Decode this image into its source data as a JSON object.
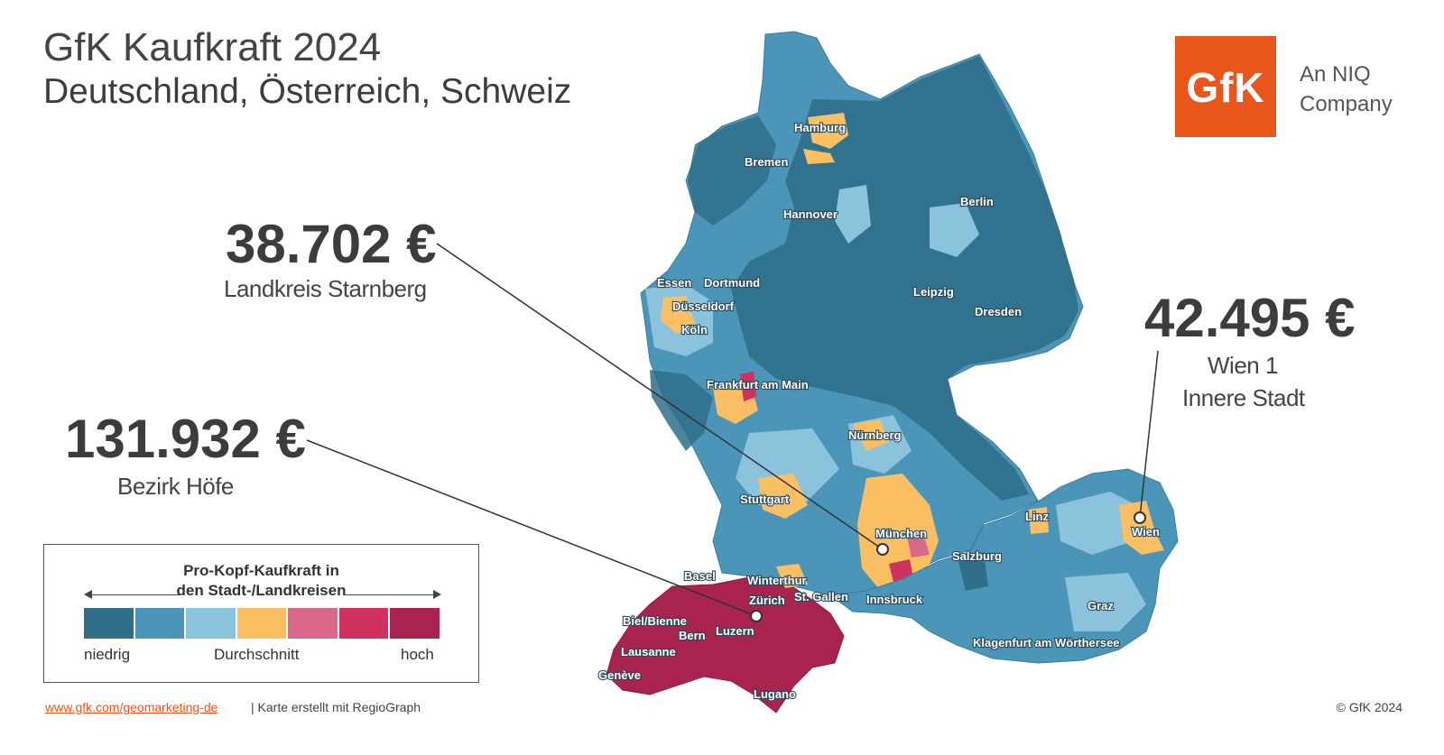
{
  "header": {
    "title": "GfK Kaufkraft 2024",
    "subtitle": "Deutschland, Österreich, Schweiz"
  },
  "logo": {
    "mark": "GfK",
    "tagline_1": "An NIQ",
    "tagline_2": "Company",
    "color": "#e8561b"
  },
  "callouts": {
    "starnberg": {
      "value": "38.702 €",
      "label": "Landkreis Starnberg"
    },
    "hoefe": {
      "value": "131.932 €",
      "label": "Bezirk Höfe"
    },
    "wien": {
      "value": "42.495 €",
      "label_1": "Wien 1",
      "label_2": "Innere Stadt"
    }
  },
  "map": {
    "cities": {
      "hamburg": "Hamburg",
      "bremen": "Bremen",
      "berlin": "Berlin",
      "hannover": "Hannover",
      "essen": "Essen",
      "dortmund": "Dortmund",
      "duesseldorf": "Düsseldorf",
      "koeln": "Köln",
      "leipzig": "Leipzig",
      "dresden": "Dresden",
      "frankfurt": "Frankfurt am Main",
      "nuernberg": "Nürnberg",
      "stuttgart": "Stuttgart",
      "muenchen": "München",
      "linz": "Linz",
      "wien": "Wien",
      "salzburg": "Salzburg",
      "basel": "Basel",
      "winterthur": "Winterthur",
      "zuerich": "Zürich",
      "stgallen": "St. Gallen",
      "innsbruck": "Innsbruck",
      "graz": "Graz",
      "biel": "Biel/Bienne",
      "bern": "Bern",
      "luzern": "Luzern",
      "lausanne": "Lausanne",
      "klagenfurt": "Klagenfurt am Wörthersee",
      "geneve": "Genève",
      "lugano": "Lugano"
    },
    "colors": {
      "dark_blue": "#2f6f8a",
      "mid_blue": "#4a95b8",
      "light_blue": "#8cc3dc",
      "average": "#fbbf63",
      "high_pink": "#d9688a",
      "high": "#d03260",
      "very_high": "#a8234d"
    }
  },
  "legend": {
    "title_1": "Pro-Kopf-Kaufkraft in",
    "title_2": "den Stadt-/Landkreisen",
    "low": "niedrig",
    "mid": "Durchschnitt",
    "high": "hoch",
    "swatches": [
      "#2f6f8a",
      "#4a95b8",
      "#8cc3dc",
      "#fbbf63",
      "#d9688a",
      "#d03260",
      "#a8234d"
    ]
  },
  "footer": {
    "link": "www.gfk.com/geomarketing-de",
    "credit": "| Karte erstellt mit RegioGraph",
    "copyright": "© GfK 2024"
  }
}
